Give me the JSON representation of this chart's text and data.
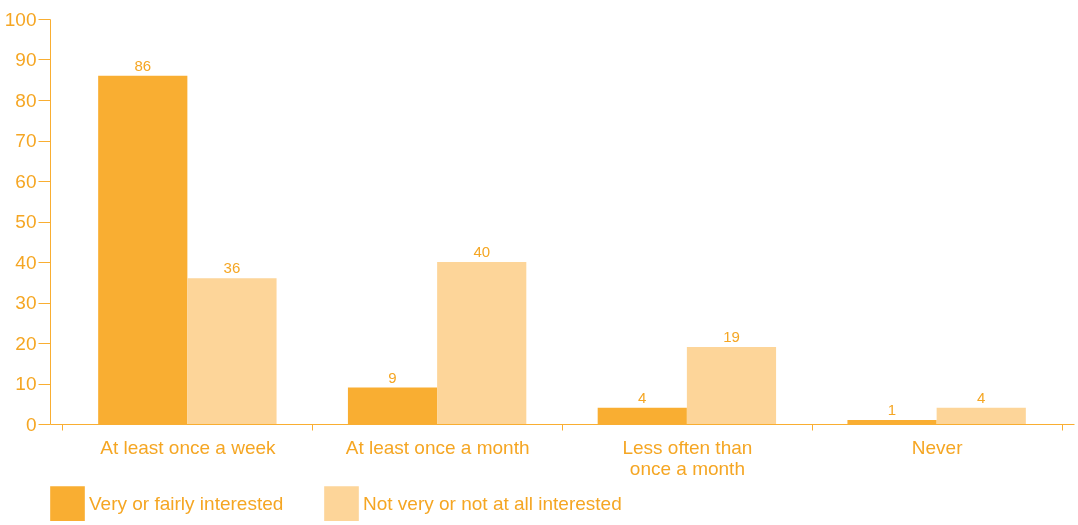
{
  "chart_data": {
    "type": "bar",
    "categories": [
      "At least once a week",
      "At least once a month",
      "Less often than once a month",
      "Never"
    ],
    "series": [
      {
        "name": "Very or fairly interested",
        "color": "#f9ae32",
        "values": [
          86,
          9,
          4,
          1
        ]
      },
      {
        "name": "Not very or not at all interested",
        "color": "#fdd599",
        "values": [
          36,
          40,
          19,
          4
        ]
      }
    ],
    "ylim": [
      0,
      100
    ],
    "yticks": [
      0,
      10,
      20,
      30,
      40,
      50,
      60,
      70,
      80,
      90,
      100
    ],
    "grid": false,
    "legend": "bottom",
    "data_labels": true
  }
}
